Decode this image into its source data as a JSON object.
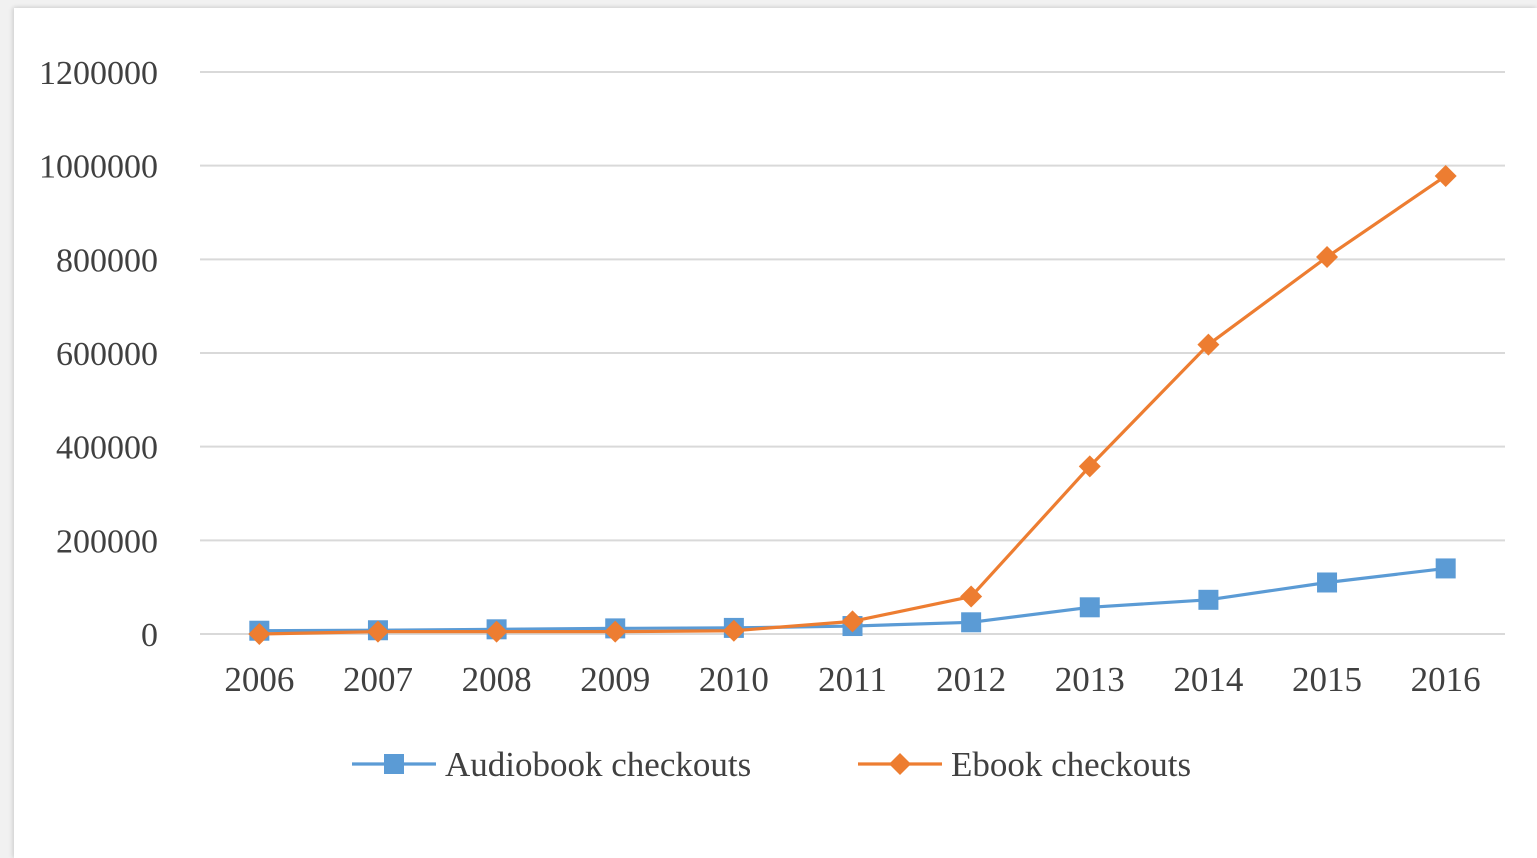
{
  "chart_data": {
    "type": "line",
    "title": "",
    "xlabel": "",
    "ylabel": "",
    "x": [
      "2006",
      "2007",
      "2008",
      "2009",
      "2010",
      "2011",
      "2012",
      "2013",
      "2014",
      "2015",
      "2016"
    ],
    "ylim": [
      0,
      1200000
    ],
    "yticks": [
      "0",
      "200000",
      "400000",
      "600000",
      "800000",
      "1000000",
      "1200000"
    ],
    "grid": true,
    "legend_position": "bottom",
    "series": [
      {
        "name": "Audiobook checkouts",
        "color": "#5b9bd5",
        "marker": "square",
        "values": [
          7000,
          8000,
          10000,
          12000,
          13000,
          17000,
          25000,
          57000,
          73000,
          110000,
          140000
        ]
      },
      {
        "name": "Ebook checkouts",
        "color": "#ed7d31",
        "marker": "diamond",
        "values": [
          0,
          5000,
          5000,
          5000,
          7000,
          27000,
          80000,
          358000,
          618000,
          805000,
          978000
        ]
      }
    ]
  }
}
